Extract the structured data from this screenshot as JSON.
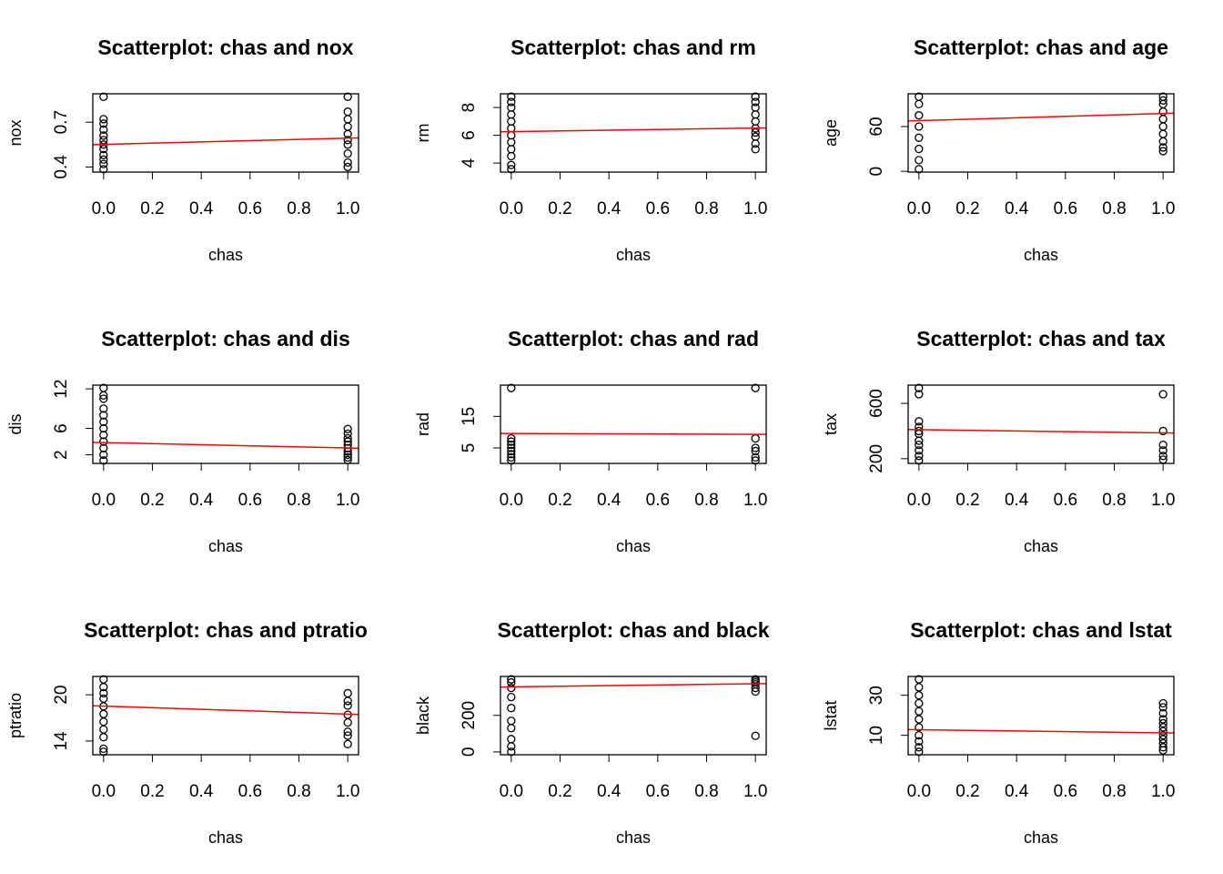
{
  "chart_data": [
    {
      "type": "scatter",
      "title": "Scatterplot: chas and nox",
      "xlabel": "chas",
      "ylabel": "nox",
      "point_color": "#000000",
      "x": [
        0,
        0,
        0,
        0,
        0,
        0,
        0,
        0,
        0,
        0,
        0,
        0,
        1,
        1,
        1,
        1,
        1,
        1,
        1,
        1,
        1,
        1
      ],
      "y": [
        0.385,
        0.42,
        0.45,
        0.48,
        0.52,
        0.55,
        0.58,
        0.61,
        0.65,
        0.69,
        0.72,
        0.87,
        0.4,
        0.43,
        0.49,
        0.55,
        0.58,
        0.62,
        0.67,
        0.72,
        0.77,
        0.87
      ],
      "xlim": [
        -0.044,
        1.044
      ],
      "ylim": [
        0.366,
        0.89
      ],
      "xticks": [
        {
          "value": 0,
          "label": "0.0"
        },
        0.2,
        0.4,
        0.6,
        0.8,
        {
          "value": 1,
          "label": "1.0"
        }
      ],
      "yticks": [
        0.4,
        0.7
      ],
      "fit_line": {
        "intercept": 0.551,
        "slope": 0.042,
        "color": "#ff0000"
      }
    },
    {
      "type": "scatter",
      "title": "Scatterplot: chas and rm",
      "xlabel": "chas",
      "ylabel": "rm",
      "point_color": "#000000",
      "x": [
        0,
        0,
        0,
        0,
        0,
        0,
        0,
        0,
        0,
        0,
        0,
        0,
        1,
        1,
        1,
        1,
        1,
        1,
        1,
        1,
        1,
        1
      ],
      "y": [
        3.56,
        3.86,
        4.5,
        5,
        5.5,
        6,
        6.5,
        7,
        7.5,
        8,
        8.4,
        8.78,
        5.0,
        5.4,
        5.9,
        6.2,
        6.5,
        7.0,
        7.5,
        8.0,
        8.4,
        8.78
      ],
      "xlim": [
        -0.044,
        1.044
      ],
      "ylim": [
        3.35,
        8.99
      ],
      "xticks": [
        {
          "value": 0,
          "label": "0.0"
        },
        0.2,
        0.4,
        0.6,
        0.8,
        {
          "value": 1,
          "label": "1.0"
        }
      ],
      "yticks": [
        4,
        6,
        8
      ],
      "fit_line": {
        "intercept": 6.267,
        "slope": 0.253,
        "color": "#ff0000"
      }
    },
    {
      "type": "scatter",
      "title": "Scatterplot: chas and age",
      "xlabel": "chas",
      "ylabel": "age",
      "point_color": "#000000",
      "x": [
        0,
        0,
        0,
        0,
        0,
        0,
        0,
        0,
        1,
        1,
        1,
        1,
        1,
        1,
        1,
        1,
        1,
        1
      ],
      "y": [
        2.9,
        15,
        30,
        45,
        60,
        75,
        90,
        100,
        27,
        32,
        40,
        50,
        60,
        70,
        80,
        90,
        95,
        100
      ],
      "xlim": [
        -0.044,
        1.044
      ],
      "ylim": [
        -1,
        103.9
      ],
      "xticks": [
        {
          "value": 0,
          "label": "0.0"
        },
        0.2,
        0.4,
        0.6,
        0.8,
        {
          "value": 1,
          "label": "1.0"
        }
      ],
      "yticks": [
        0,
        60
      ],
      "fit_line": {
        "intercept": 67.9,
        "slope": 9.6,
        "color": "#ff0000"
      }
    },
    {
      "type": "scatter",
      "title": "Scatterplot: chas and dis",
      "xlabel": "chas",
      "ylabel": "dis",
      "point_color": "#000000",
      "x": [
        0,
        0,
        0,
        0,
        0,
        0,
        0,
        0,
        0,
        0,
        0,
        0,
        1,
        1,
        1,
        1,
        1,
        1,
        1,
        1,
        1,
        1
      ],
      "y": [
        1.13,
        2,
        3,
        4,
        5,
        6,
        7,
        8,
        9,
        10.5,
        11,
        12.13,
        1.2,
        1.6,
        2,
        2.5,
        3,
        3.5,
        4,
        4.5,
        5.2,
        5.9
      ],
      "xlim": [
        -0.044,
        1.044
      ],
      "ylim": [
        0.69,
        12.57
      ],
      "xticks": [
        {
          "value": 0,
          "label": "0.0"
        },
        0.2,
        0.4,
        0.6,
        0.8,
        {
          "value": 1,
          "label": "1.0"
        }
      ],
      "yticks": [
        2,
        6,
        12
      ],
      "fit_line": {
        "intercept": 3.85,
        "slope": -0.82,
        "color": "#ff0000"
      }
    },
    {
      "type": "scatter",
      "title": "Scatterplot: chas and rad",
      "xlabel": "chas",
      "ylabel": "rad",
      "point_color": "#000000",
      "x": [
        0,
        0,
        0,
        0,
        0,
        0,
        0,
        0,
        0,
        1,
        1,
        1,
        1,
        1,
        1
      ],
      "y": [
        1,
        2,
        3,
        4,
        5,
        6,
        7,
        8,
        24,
        1,
        2,
        4,
        5,
        8,
        24
      ],
      "xlim": [
        -0.044,
        1.044
      ],
      "ylim": [
        0.08,
        24.92
      ],
      "xticks": [
        {
          "value": 0,
          "label": "0.0"
        },
        0.2,
        0.4,
        0.6,
        0.8,
        {
          "value": 1,
          "label": "1.0"
        }
      ],
      "yticks": [
        5,
        15
      ],
      "fit_line": {
        "intercept": 9.57,
        "slope": -0.26,
        "color": "#ff0000"
      }
    },
    {
      "type": "scatter",
      "title": "Scatterplot: chas and tax",
      "xlabel": "chas",
      "ylabel": "tax",
      "point_color": "#000000",
      "x": [
        0,
        0,
        0,
        0,
        0,
        0,
        0,
        0,
        0,
        0,
        0,
        1,
        1,
        1,
        1,
        1,
        1
      ],
      "y": [
        187,
        220,
        260,
        300,
        330,
        380,
        400,
        430,
        470,
        666,
        711,
        193,
        220,
        260,
        300,
        400,
        666
      ],
      "xlim": [
        -0.044,
        1.044
      ],
      "ylim": [
        166,
        732
      ],
      "xticks": [
        {
          "value": 0,
          "label": "0.0"
        },
        0.2,
        0.4,
        0.6,
        0.8,
        {
          "value": 1,
          "label": "1.0"
        }
      ],
      "yticks": [
        200,
        600
      ],
      "fit_line": {
        "intercept": 409.9,
        "slope": -23.6,
        "color": "#ff0000"
      }
    },
    {
      "type": "scatter",
      "title": "Scatterplot: chas and ptratio",
      "xlabel": "chas",
      "ylabel": "ptratio",
      "point_color": "#000000",
      "x": [
        0,
        0,
        0,
        0,
        0,
        0,
        0,
        0,
        0,
        0,
        0,
        1,
        1,
        1,
        1,
        1,
        1,
        1,
        1
      ],
      "y": [
        12.6,
        13,
        14.5,
        15.5,
        16.5,
        17.5,
        18.5,
        19.5,
        20.2,
        21,
        22,
        13.6,
        14.7,
        15.2,
        16.4,
        17.4,
        18.6,
        19.2,
        20.2
      ],
      "xlim": [
        -0.044,
        1.044
      ],
      "ylim": [
        12.22,
        22.38
      ],
      "xticks": [
        {
          "value": 0,
          "label": "0.0"
        },
        0.2,
        0.4,
        0.6,
        0.8,
        {
          "value": 1,
          "label": "1.0"
        }
      ],
      "yticks": [
        14,
        20
      ],
      "fit_line": {
        "intercept": 18.53,
        "slope": -1.04,
        "color": "#ff0000"
      }
    },
    {
      "type": "scatter",
      "title": "Scatterplot: chas and black",
      "xlabel": "chas",
      "ylabel": "black",
      "point_color": "#000000",
      "x": [
        0,
        0,
        0,
        0,
        0,
        0,
        0,
        0,
        0,
        0,
        1,
        1,
        1,
        1,
        1,
        1,
        1
      ],
      "y": [
        0.32,
        30,
        70,
        130,
        170,
        240,
        300,
        350,
        380,
        396.9,
        88,
        330,
        350,
        370,
        380,
        390,
        396.9
      ],
      "xlim": [
        -0.044,
        1.044
      ],
      "ylim": [
        -15.5,
        412.8
      ],
      "xticks": [
        {
          "value": 0,
          "label": "0.0"
        },
        0.2,
        0.4,
        0.6,
        0.8,
        {
          "value": 1,
          "label": "1.0"
        }
      ],
      "yticks": [
        0,
        200
      ],
      "fit_line": {
        "intercept": 355.5,
        "slope": 17.5,
        "color": "#ff0000"
      }
    },
    {
      "type": "scatter",
      "title": "Scatterplot: chas and lstat",
      "xlabel": "chas",
      "ylabel": "lstat",
      "point_color": "#000000",
      "x": [
        0,
        0,
        0,
        0,
        0,
        0,
        0,
        0,
        0,
        0,
        0,
        1,
        1,
        1,
        1,
        1,
        1,
        1,
        1,
        1,
        1,
        1,
        1
      ],
      "y": [
        1.73,
        4,
        7,
        10,
        14,
        18,
        22,
        26,
        30,
        34,
        37.97,
        2.5,
        4,
        6,
        8,
        10,
        12,
        14,
        16,
        18,
        21,
        24,
        26
      ],
      "xlim": [
        -0.044,
        1.044
      ],
      "ylim": [
        0.28,
        39.42
      ],
      "xticks": [
        {
          "value": 0,
          "label": "0.0"
        },
        0.2,
        0.4,
        0.6,
        0.8,
        {
          "value": 1,
          "label": "1.0"
        }
      ],
      "yticks": [
        10,
        30
      ],
      "fit_line": {
        "intercept": 12.76,
        "slope": -1.52,
        "color": "#ff0000"
      }
    }
  ]
}
